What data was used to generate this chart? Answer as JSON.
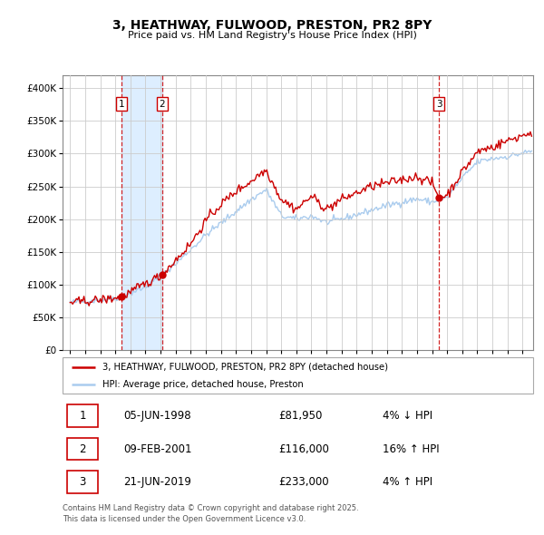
{
  "title": "3, HEATHWAY, FULWOOD, PRESTON, PR2 8PY",
  "subtitle": "Price paid vs. HM Land Registry's House Price Index (HPI)",
  "legend_line1": "3, HEATHWAY, FULWOOD, PRESTON, PR2 8PY (detached house)",
  "legend_line2": "HPI: Average price, detached house, Preston",
  "footer": "Contains HM Land Registry data © Crown copyright and database right 2025.\nThis data is licensed under the Open Government Licence v3.0.",
  "sales": [
    {
      "num": 1,
      "date_str": "05-JUN-1998",
      "date_x": 1998.43,
      "price": 81950,
      "pct": "4%",
      "dir": "↓"
    },
    {
      "num": 2,
      "date_str": "09-FEB-2001",
      "date_x": 2001.11,
      "price": 116000,
      "pct": "16%",
      "dir": "↑"
    },
    {
      "num": 3,
      "date_str": "21-JUN-2019",
      "date_x": 2019.47,
      "price": 233000,
      "pct": "4%",
      "dir": "↑"
    }
  ],
  "shade_x1": 1998.43,
  "shade_x2": 2001.11,
  "red_color": "#cc0000",
  "blue_color": "#aaccee",
  "shade_color": "#ddeeff",
  "grid_color": "#cccccc",
  "bg_color": "#ffffff",
  "ylim": [
    0,
    420000
  ],
  "yticks": [
    0,
    50000,
    100000,
    150000,
    200000,
    250000,
    300000,
    350000,
    400000
  ],
  "xlim_start": 1994.5,
  "xlim_end": 2025.7,
  "xticks": [
    1995,
    1996,
    1997,
    1998,
    1999,
    2000,
    2001,
    2002,
    2003,
    2004,
    2005,
    2006,
    2007,
    2008,
    2009,
    2010,
    2011,
    2012,
    2013,
    2014,
    2015,
    2016,
    2017,
    2018,
    2019,
    2020,
    2021,
    2022,
    2023,
    2024,
    2025
  ]
}
